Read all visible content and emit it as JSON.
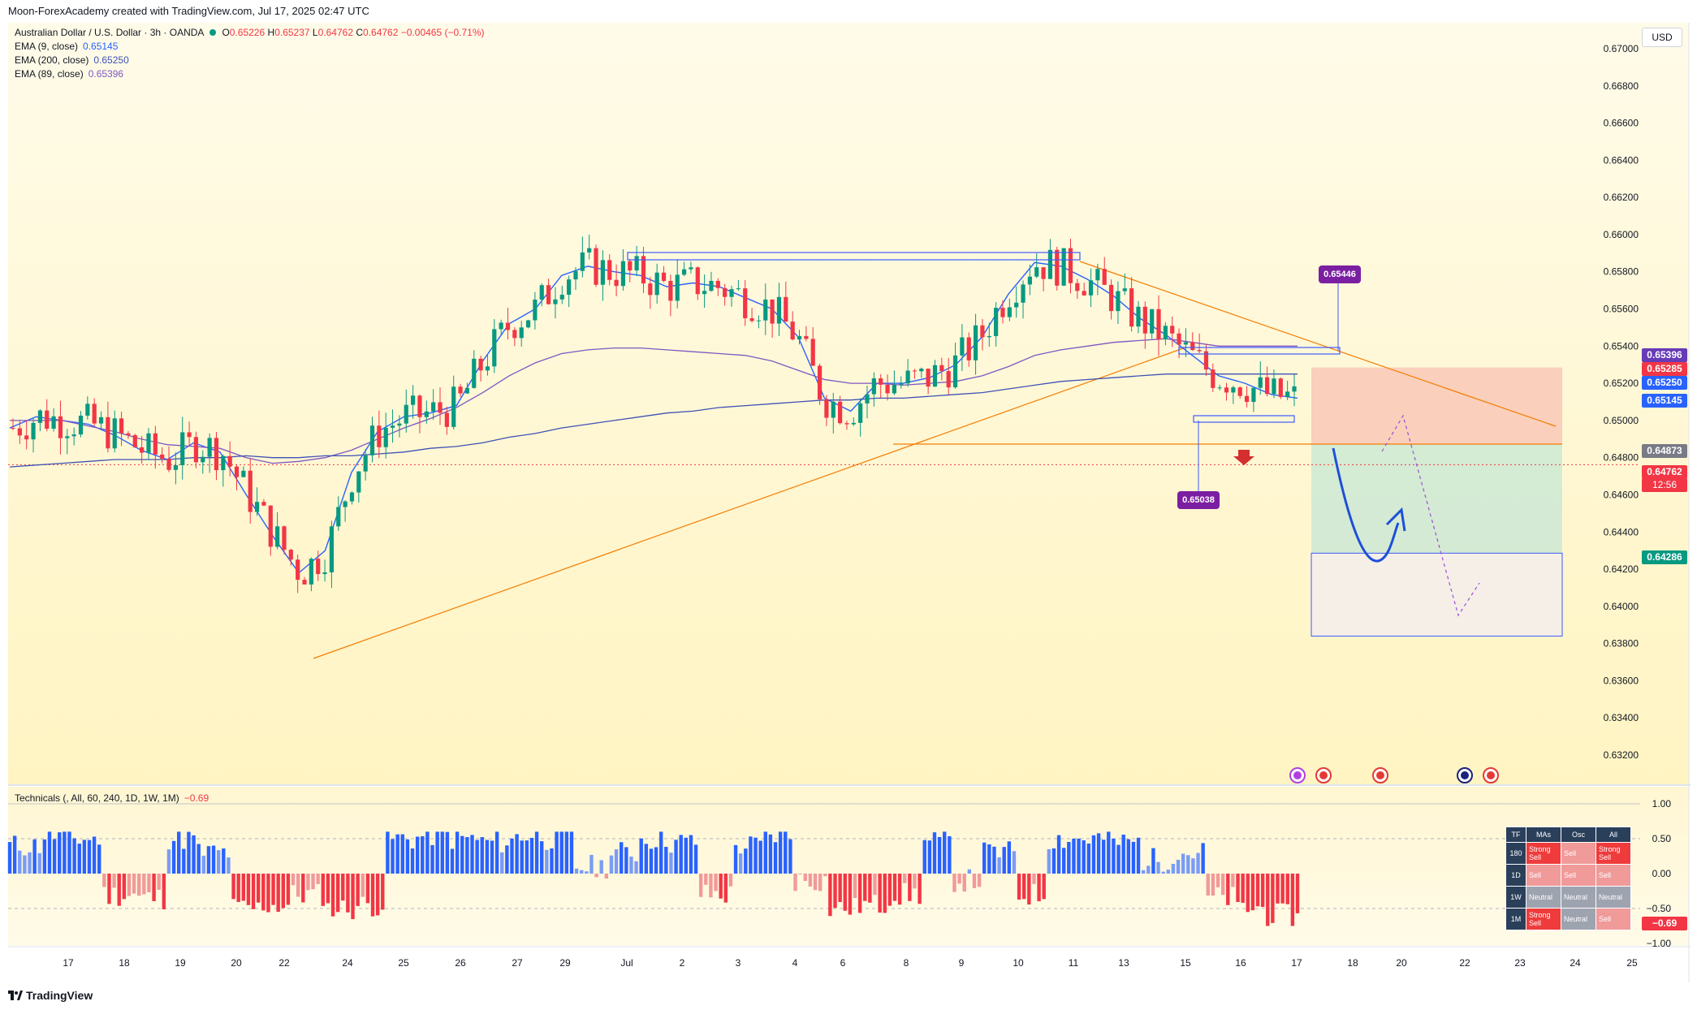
{
  "header": {
    "credit": "Moon-ForexAcademy created with TradingView.com, Jul 17, 2025 02:47 UTC"
  },
  "legend": {
    "symbol": "Australian Dollar / U.S. Dollar · 3h · OANDA",
    "ohlc": {
      "o_label": "O",
      "o": "0.65226",
      "h_label": "H",
      "h": "0.65237",
      "l_label": "L",
      "l": "0.64762",
      "c_label": "C",
      "c": "0.64762",
      "change": "−0.00465 (−0.71%)"
    },
    "ema9": {
      "label": "EMA (9, close)",
      "value": "0.65145",
      "color": "#2962ff"
    },
    "ema200": {
      "label": "EMA (200, close)",
      "value": "0.65250",
      "color": "#3f51b5"
    },
    "ema89": {
      "label": "EMA (89, close)",
      "value": "0.65396",
      "color": "#7e57c2"
    }
  },
  "currency": "USD",
  "price_tags": [
    {
      "value": "0.65396",
      "color": "#673ab7"
    },
    {
      "value": "0.65285",
      "color": "#f23645"
    },
    {
      "value": "0.65250",
      "color": "#2962ff"
    },
    {
      "value": "0.65145",
      "color": "#2962ff"
    },
    {
      "value": "0.64873",
      "color": "#787b86"
    },
    {
      "value": "0.64762",
      "color": "#f23645"
    },
    {
      "value": "12:56",
      "color": "#f23645"
    },
    {
      "value": "0.64286",
      "color": "#089981"
    }
  ],
  "annotations": {
    "target_pill": "0.65446",
    "low_pill": "0.65038"
  },
  "indicator": {
    "label": "Technicals (, All, 60, 240, 1D, 1W, 1M)",
    "value": "−0.69",
    "value_tag": "−0.69",
    "table": {
      "headers": [
        "TF",
        "MAs",
        "Osc",
        "All"
      ],
      "rows": [
        {
          "tf": "180",
          "mas": "Strong Sell",
          "osc": "Sell",
          "all": "Strong Sell"
        },
        {
          "tf": "1D",
          "mas": "Sell",
          "osc": "Sell",
          "all": "Sell"
        },
        {
          "tf": "1W",
          "mas": "Neutral",
          "osc": "Neutral",
          "all": "Neutral"
        },
        {
          "tf": "1M",
          "mas": "Strong Sell",
          "osc": "Neutral",
          "all": "Sell"
        }
      ]
    }
  },
  "branding": "TradingView",
  "chart_data": [
    {
      "type": "line",
      "y_ticks": [
        "0.67000",
        "0.66800",
        "0.66600",
        "0.66400",
        "0.66200",
        "0.66000",
        "0.65800",
        "0.65600",
        "0.65400",
        "0.65200",
        "0.65000",
        "0.64800",
        "0.64600",
        "0.64400",
        "0.64200",
        "0.64000",
        "0.63800",
        "0.63600",
        "0.63400",
        "0.63200"
      ],
      "y_tick_values": [
        0.67,
        0.668,
        0.666,
        0.664,
        0.662,
        0.66,
        0.658,
        0.656,
        0.654,
        0.652,
        0.65,
        0.648,
        0.646,
        0.644,
        0.642,
        0.64,
        0.638,
        0.636,
        0.634,
        0.632
      ],
      "ylim": [
        0.6312,
        0.6714
      ],
      "x_ticks": [
        "17",
        "18",
        "19",
        "20",
        "22",
        "24",
        "25",
        "26",
        "27",
        "29",
        "Jul",
        "2",
        "3",
        "4",
        "6",
        "8",
        "9",
        "10",
        "11",
        "13",
        "15",
        "16",
        "17",
        "18",
        "20",
        "22",
        "23",
        "24",
        "25"
      ],
      "series": [
        {
          "name": "EMA (9, close)",
          "values": [
            0.6496,
            0.6502,
            0.65,
            0.6498,
            0.6492,
            0.6484,
            0.6479,
            0.6488,
            0.6483,
            0.646,
            0.6438,
            0.6418,
            0.643,
            0.6472,
            0.6494,
            0.6502,
            0.6504,
            0.6508,
            0.6532,
            0.6552,
            0.656,
            0.6578,
            0.6583,
            0.658,
            0.6578,
            0.6572,
            0.6574,
            0.6572,
            0.6566,
            0.656,
            0.6545,
            0.6512,
            0.6505,
            0.652,
            0.652,
            0.6523,
            0.653,
            0.6545,
            0.6568,
            0.6585,
            0.6583,
            0.6576,
            0.6567,
            0.6555,
            0.6546,
            0.6535,
            0.6524,
            0.652,
            0.6514,
            0.6512
          ]
        },
        {
          "name": "EMA (89, close)",
          "values": [
            0.65,
            0.65,
            0.65,
            0.6497,
            0.6494,
            0.649,
            0.6487,
            0.6486,
            0.6485,
            0.648,
            0.6477,
            0.6478,
            0.648,
            0.6484,
            0.649,
            0.6496,
            0.6501,
            0.6507,
            0.6515,
            0.6524,
            0.6531,
            0.6536,
            0.6538,
            0.6539,
            0.6539,
            0.6538,
            0.6537,
            0.6536,
            0.6535,
            0.6532,
            0.6527,
            0.6522,
            0.652,
            0.652,
            0.6519,
            0.652,
            0.6521,
            0.6524,
            0.6529,
            0.6535,
            0.6538,
            0.654,
            0.6542,
            0.6543,
            0.6544,
            0.6542,
            0.654,
            0.654,
            0.654,
            0.654
          ]
        },
        {
          "name": "EMA (200, close)",
          "values": [
            0.6475,
            0.6476,
            0.6477,
            0.6478,
            0.6479,
            0.6479,
            0.6479,
            0.648,
            0.648,
            0.6481,
            0.648,
            0.648,
            0.6481,
            0.6481,
            0.6482,
            0.6483,
            0.6485,
            0.6486,
            0.6488,
            0.6491,
            0.6493,
            0.6496,
            0.6498,
            0.65,
            0.6502,
            0.6504,
            0.6505,
            0.6507,
            0.6508,
            0.6509,
            0.651,
            0.6511,
            0.6511,
            0.6512,
            0.6512,
            0.6513,
            0.6514,
            0.6515,
            0.6517,
            0.6519,
            0.6521,
            0.6522,
            0.6523,
            0.6524,
            0.6525,
            0.6525,
            0.6525,
            0.6525,
            0.6525,
            0.6525
          ]
        }
      ],
      "position": {
        "entry": 0.64873,
        "stop": 0.65285,
        "target": 0.64286,
        "ext_target": 0.6384
      }
    },
    {
      "type": "bar",
      "ylim": [
        -1.0,
        1.0
      ],
      "y_ticks": [
        "1.00",
        "0.50",
        "0.00",
        "−0.50",
        "−1.00"
      ],
      "y_tick_values": [
        1.0,
        0.5,
        0.0,
        -0.5,
        -1.0
      ]
    }
  ]
}
